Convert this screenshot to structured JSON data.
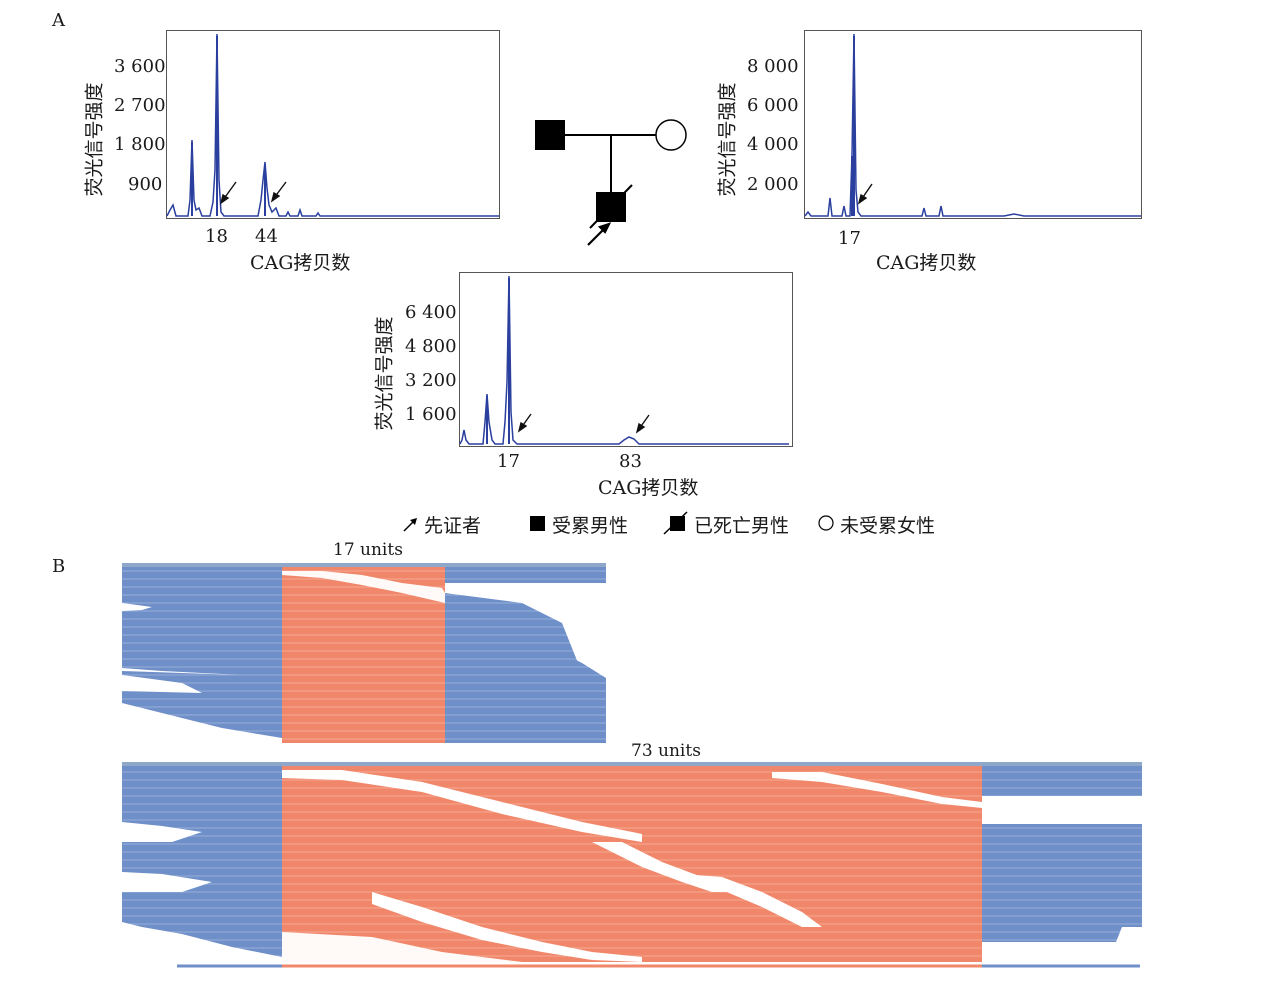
{
  "panel_a": {
    "label": "A",
    "legend": {
      "proband": "先证者",
      "affected_male": "受累男性",
      "deceased_affected_male": "已死亡男性",
      "unaffected_female": "未受累女性"
    }
  },
  "panel_b": {
    "label": "B",
    "allele_short_label": "17 units",
    "allele_long_label": "73 units",
    "colors": {
      "flank": "#6f8fc9",
      "repeat": "#f1876a",
      "background": "#ffffff"
    }
  },
  "chart_data": [
    {
      "type": "line",
      "title": "",
      "ylabel": "荧光信号强度",
      "xlabel": "CAG拷贝数",
      "y_ticks": [
        "3 600",
        "2 700",
        "1 800",
        "900"
      ],
      "x_ticks": [
        "18",
        "44"
      ],
      "arrow_at": [
        18,
        44
      ],
      "color": "#2a3f9e"
    },
    {
      "type": "line",
      "title": "",
      "ylabel": "荧光信号强度",
      "xlabel": "CAG拷贝数",
      "y_ticks": [
        "8 000",
        "6 000",
        "4 000",
        "2 000"
      ],
      "x_ticks": [
        "17"
      ],
      "arrow_at": [
        17
      ],
      "color": "#2a3f9e"
    },
    {
      "type": "line",
      "title": "",
      "ylabel": "荧光信号强度",
      "xlabel": "CAG拷贝数",
      "y_ticks": [
        "6 400",
        "4 800",
        "3 200",
        "1 600"
      ],
      "x_ticks": [
        "17",
        "83"
      ],
      "arrow_at": [
        17,
        83
      ],
      "color": "#2a3f9e"
    }
  ]
}
